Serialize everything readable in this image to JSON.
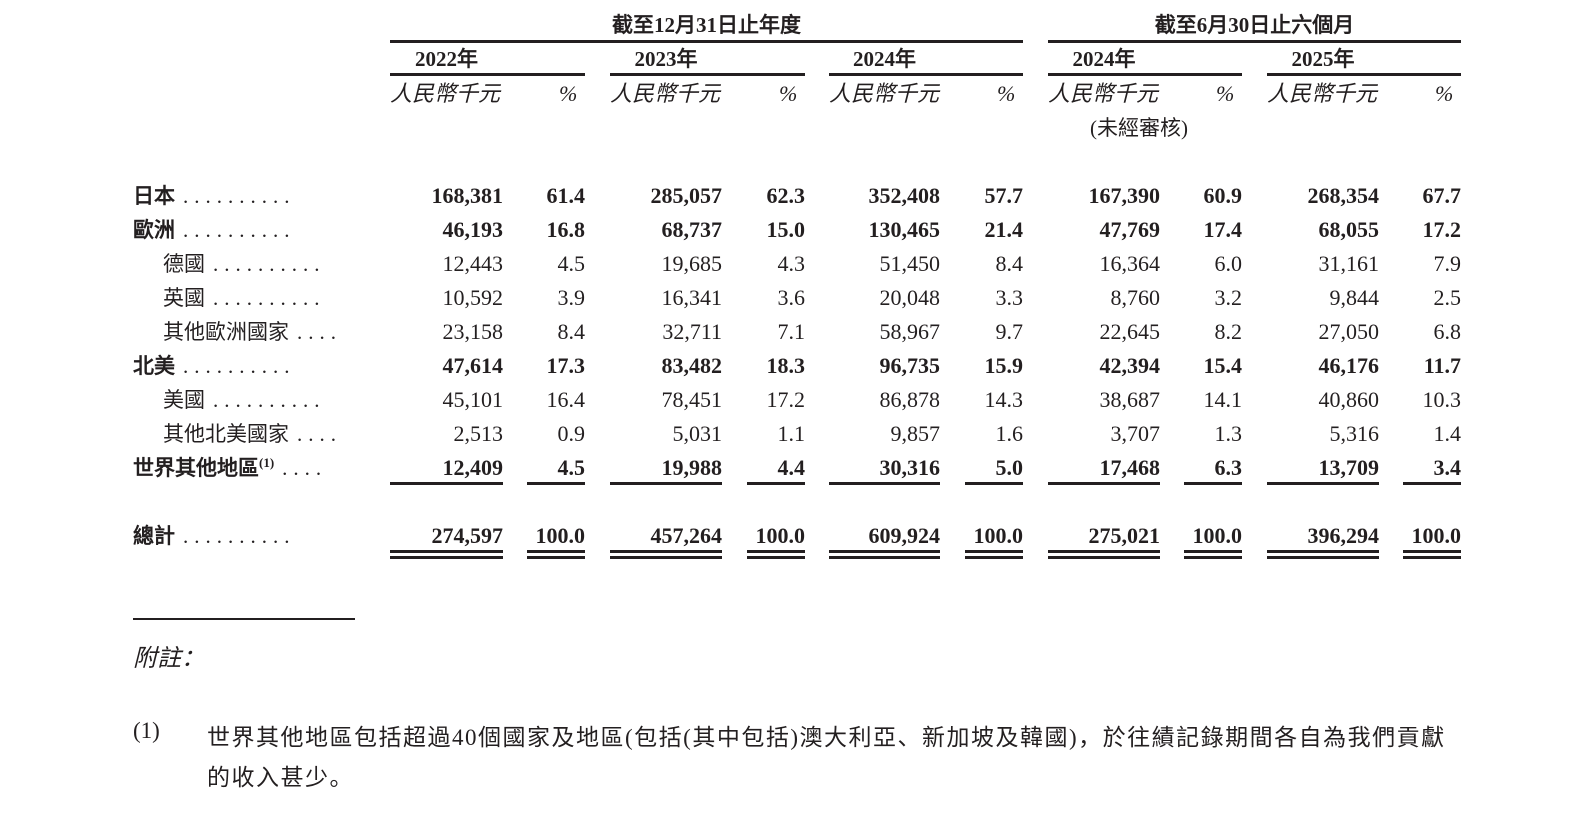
{
  "header": {
    "period_annual": "截至12月31日止年度",
    "period_interim": "截至6月30日止六個月",
    "columns": [
      {
        "year": "2022年",
        "unit": "人民幣千元",
        "pct": "%",
        "note": ""
      },
      {
        "year": "2023年",
        "unit": "人民幣千元",
        "pct": "%",
        "note": ""
      },
      {
        "year": "2024年",
        "unit": "人民幣千元",
        "pct": "%",
        "note": ""
      },
      {
        "year": "2024年",
        "unit": "人民幣千元",
        "pct": "%",
        "note": "(未經審核)"
      },
      {
        "year": "2025年",
        "unit": "人民幣千元",
        "pct": "%",
        "note": ""
      }
    ]
  },
  "rows": [
    {
      "label": "日本",
      "dots": "..........",
      "bold": true,
      "indent": false,
      "values": [
        [
          "168,381",
          "61.4"
        ],
        [
          "285,057",
          "62.3"
        ],
        [
          "352,408",
          "57.7"
        ],
        [
          "167,390",
          "60.9"
        ],
        [
          "268,354",
          "67.7"
        ]
      ]
    },
    {
      "label": "歐洲",
      "dots": "..........",
      "bold": true,
      "indent": false,
      "values": [
        [
          "46,193",
          "16.8"
        ],
        [
          "68,737",
          "15.0"
        ],
        [
          "130,465",
          "21.4"
        ],
        [
          "47,769",
          "17.4"
        ],
        [
          "68,055",
          "17.2"
        ]
      ]
    },
    {
      "label": "德國",
      "dots": "..........",
      "bold": false,
      "indent": true,
      "values": [
        [
          "12,443",
          "4.5"
        ],
        [
          "19,685",
          "4.3"
        ],
        [
          "51,450",
          "8.4"
        ],
        [
          "16,364",
          "6.0"
        ],
        [
          "31,161",
          "7.9"
        ]
      ]
    },
    {
      "label": "英國",
      "dots": "..........",
      "bold": false,
      "indent": true,
      "values": [
        [
          "10,592",
          "3.9"
        ],
        [
          "16,341",
          "3.6"
        ],
        [
          "20,048",
          "3.3"
        ],
        [
          "8,760",
          "3.2"
        ],
        [
          "9,844",
          "2.5"
        ]
      ]
    },
    {
      "label": "其他歐洲國家",
      "dots": "....",
      "bold": false,
      "indent": true,
      "values": [
        [
          "23,158",
          "8.4"
        ],
        [
          "32,711",
          "7.1"
        ],
        [
          "58,967",
          "9.7"
        ],
        [
          "22,645",
          "8.2"
        ],
        [
          "27,050",
          "6.8"
        ]
      ]
    },
    {
      "label": "北美",
      "dots": "..........",
      "bold": true,
      "indent": false,
      "values": [
        [
          "47,614",
          "17.3"
        ],
        [
          "83,482",
          "18.3"
        ],
        [
          "96,735",
          "15.9"
        ],
        [
          "42,394",
          "15.4"
        ],
        [
          "46,176",
          "11.7"
        ]
      ]
    },
    {
      "label": "美國",
      "dots": "..........",
      "bold": false,
      "indent": true,
      "values": [
        [
          "45,101",
          "16.4"
        ],
        [
          "78,451",
          "17.2"
        ],
        [
          "86,878",
          "14.3"
        ],
        [
          "38,687",
          "14.1"
        ],
        [
          "40,860",
          "10.3"
        ]
      ]
    },
    {
      "label": "其他北美國家",
      "dots": "....",
      "bold": false,
      "indent": true,
      "values": [
        [
          "2,513",
          "0.9"
        ],
        [
          "5,031",
          "1.1"
        ],
        [
          "9,857",
          "1.6"
        ],
        [
          "3,707",
          "1.3"
        ],
        [
          "5,316",
          "1.4"
        ]
      ]
    },
    {
      "label": "世界其他地區",
      "sup": "(1)",
      "dots": "....",
      "bold": true,
      "indent": false,
      "values": [
        [
          "12,409",
          "4.5"
        ],
        [
          "19,988",
          "4.4"
        ],
        [
          "30,316",
          "5.0"
        ],
        [
          "17,468",
          "6.3"
        ],
        [
          "13,709",
          "3.4"
        ]
      ]
    }
  ],
  "total": {
    "label": "總計",
    "dots": "..........",
    "values": [
      [
        "274,597",
        "100.0"
      ],
      [
        "457,264",
        "100.0"
      ],
      [
        "609,924",
        "100.0"
      ],
      [
        "275,021",
        "100.0"
      ],
      [
        "396,294",
        "100.0"
      ]
    ]
  },
  "notes": {
    "title": "附註：",
    "items": [
      {
        "marker": "(1)",
        "text": "世界其他地區包括超過40個國家及地區(包括(其中包括)澳大利亞、新加坡及韓國)，於往績記錄期間各自為我們貢獻的收入甚少。"
      }
    ]
  }
}
